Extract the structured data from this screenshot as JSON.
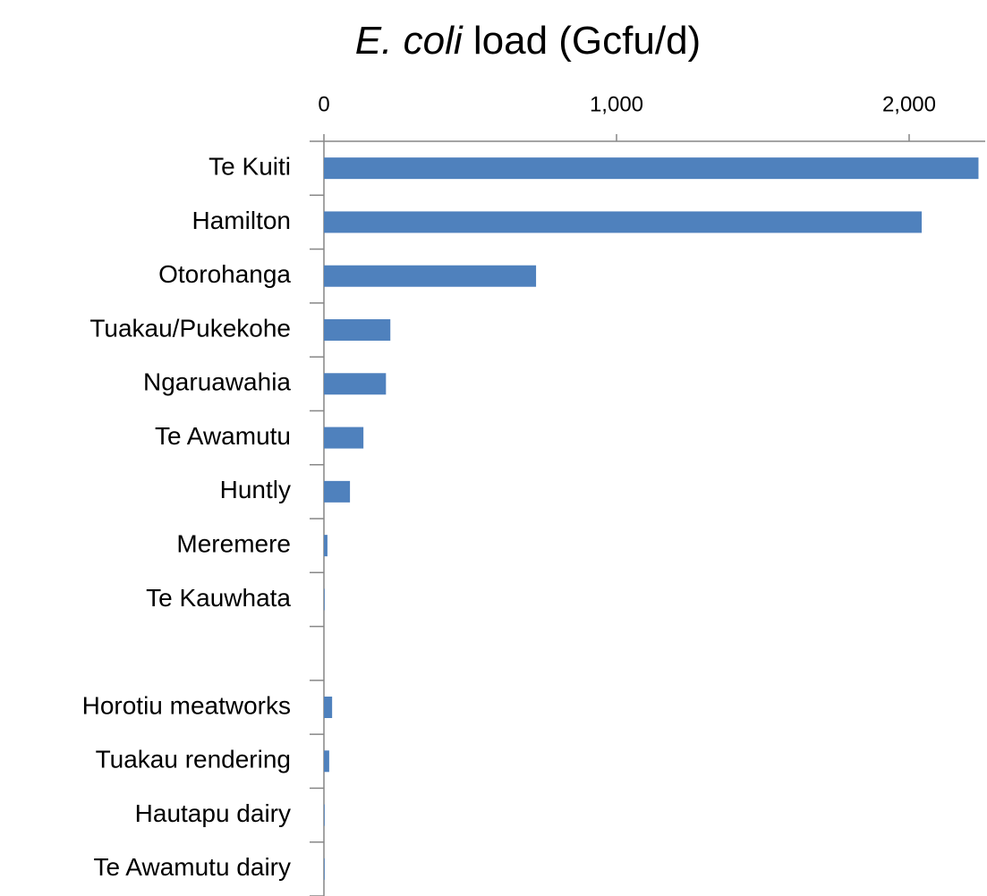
{
  "chart_data": {
    "type": "barh",
    "title": [
      "E. coli",
      "load (Gcfu/d)"
    ],
    "categories": [
      "Te Kuiti",
      "Hamilton",
      "Otorohanga",
      "Tuakau/Pukekohe",
      "Ngaruawahia",
      "Te Awamutu",
      "Huntly",
      "Meremere",
      "Te Kauwhata",
      null,
      "Horotiu meatworks",
      "Tuakau rendering",
      "Hautapu dairy",
      "Te Awamutu dairy"
    ],
    "values": [
      2237,
      2043,
      725,
      227,
      212,
      135,
      89,
      12,
      1,
      null,
      28,
      18,
      1,
      0.5
    ],
    "color": "#4f81bd",
    "xlim": [
      0,
      2260
    ],
    "xticks": [
      0,
      {
        "value": 1000,
        "label": "1,000"
      },
      {
        "value": 2000,
        "label": "2,000"
      }
    ]
  }
}
